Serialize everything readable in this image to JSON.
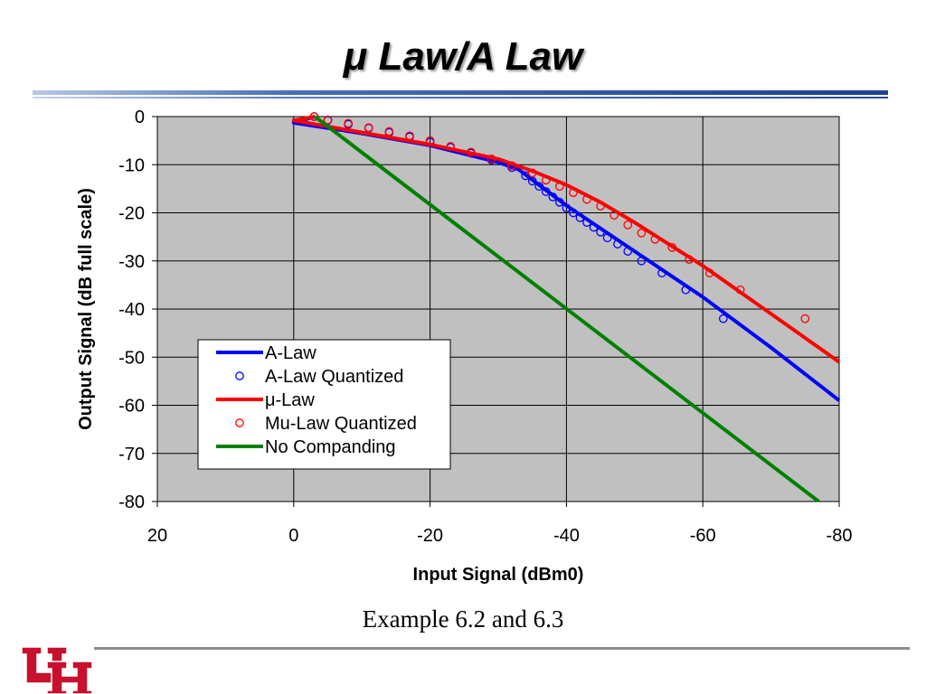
{
  "slide": {
    "title": "μ Law/A Law",
    "caption": "Example 6.2 and 6.3"
  },
  "logo": {
    "name": "uh-interlocking-logo",
    "text": "UH"
  },
  "colors": {
    "plot_bg": "#c0c0c0",
    "grid": "#000000",
    "a_law": "#0000ff",
    "mu_law": "#ff0000",
    "no_companding": "#008000",
    "logo_red": "#c8102e"
  },
  "chart_data": {
    "type": "line",
    "title": "",
    "xlabel": "Input Signal (dBm0)",
    "ylabel": "Output Signal (dB full scale)",
    "xlim": [
      20,
      -80
    ],
    "ylim": [
      -80,
      0
    ],
    "x_ticks": [
      20,
      0,
      -20,
      -40,
      -60,
      -80
    ],
    "y_ticks": [
      0,
      -10,
      -20,
      -30,
      -40,
      -50,
      -60,
      -70,
      -80
    ],
    "grid": true,
    "legend_position": "bottom-left",
    "series": [
      {
        "name": "A-Law",
        "kind": "line",
        "color": "#0000ff",
        "x": [
          -3.1,
          0,
          -10,
          -20,
          -30,
          -33,
          -40,
          -50,
          -60,
          -70,
          -80
        ],
        "y": [
          0,
          -1.3,
          -3.5,
          -6,
          -9.5,
          -11,
          -18.5,
          -28,
          -37.5,
          -48,
          -59
        ]
      },
      {
        "name": "A-Law Quantized",
        "kind": "markers",
        "color": "#0000ff",
        "x": [
          -3,
          -5,
          -8,
          -11,
          -14,
          -17,
          -20,
          -23,
          -26,
          -29,
          -32,
          -34,
          -35,
          -36,
          -37,
          -38,
          -39,
          -40,
          -41,
          -42,
          -43,
          -44,
          -45,
          -46,
          -47.5,
          -49,
          -51,
          -54,
          -57.5,
          -63
        ],
        "y": [
          0,
          -0.8,
          -1.6,
          -2.4,
          -3.3,
          -4.2,
          -5.3,
          -6.4,
          -7.6,
          -9,
          -10.6,
          -12.3,
          -13.4,
          -14.5,
          -15.6,
          -16.7,
          -17.8,
          -19,
          -20,
          -21,
          -22,
          -23,
          -24,
          -25.2,
          -26.5,
          -28,
          -30,
          -32.5,
          -36,
          -42
        ]
      },
      {
        "name": "μ-Law",
        "kind": "line",
        "color": "#ff0000",
        "x": [
          -3.1,
          0,
          -10,
          -20,
          -30,
          -35,
          -40,
          -45,
          -50,
          -60,
          -70,
          -80
        ],
        "y": [
          0,
          -0.8,
          -3.3,
          -5.8,
          -8.8,
          -11.3,
          -14.2,
          -17.8,
          -22,
          -31,
          -41,
          -51
        ]
      },
      {
        "name": "Mu-Law Quantized",
        "kind": "markers",
        "color": "#ff0000",
        "x": [
          -3,
          -5,
          -8,
          -11,
          -14,
          -17,
          -20,
          -23,
          -26,
          -29,
          -32,
          -35,
          -37,
          -39,
          -41,
          -43,
          -45,
          -47,
          -49,
          -51,
          -53,
          -55.5,
          -58,
          -61,
          -65.5,
          -75
        ],
        "y": [
          0,
          -0.7,
          -1.4,
          -2.3,
          -3.1,
          -4,
          -5,
          -6.2,
          -7.4,
          -8.8,
          -10.2,
          -11.7,
          -13.2,
          -14.5,
          -15.8,
          -17.2,
          -18.6,
          -20.5,
          -22.5,
          -24.2,
          -25.5,
          -27.2,
          -29.7,
          -32.5,
          -36,
          -42
        ]
      },
      {
        "name": "No Companding",
        "kind": "line",
        "color": "#008000",
        "x": [
          -3.1,
          -77
        ],
        "y": [
          0,
          -80
        ]
      }
    ]
  }
}
